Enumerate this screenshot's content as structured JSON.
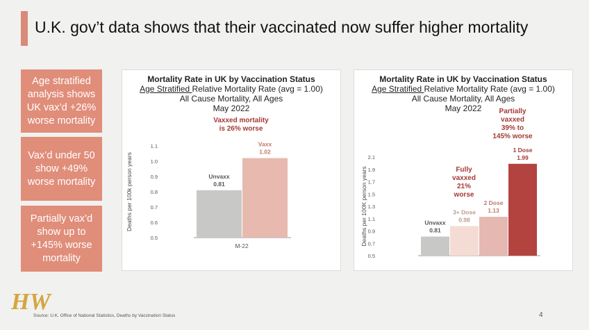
{
  "slide": {
    "title": "U.K. gov’t data shows that their vaccinated now suffer higher mortality",
    "left_boxes": [
      "Age stratified analysis shows UK vax’d +26% worse mortality",
      "Vax’d under 50 show +49% worse mortality",
      "Partially vax’d show up to +145% worse mortality"
    ],
    "footer": "Source: U.K. Office of National Statistics, Deaths by Vaccination Status",
    "page_number": "4",
    "logo_text": "HW",
    "colors": {
      "accent": "#e08d7a",
      "title_bar": "#d98a78",
      "dark_red": "#a33a36"
    }
  },
  "chart_data": [
    {
      "type": "bar",
      "title": "Mortality Rate in UK by Vaccination Status",
      "subtitle_underlined": "Age Stratified ",
      "subtitle_rest": "Relative Mortality Rate (avg = 1.00) All Cause Mortality, All Ages",
      "date": "May 2022",
      "annotation": "Vaxxed mortality is 26% worse",
      "ylabel": "Deaths per 100k person years",
      "xlabel": "M-22",
      "ylim": [
        0.5,
        1.1
      ],
      "yticks": [
        "0.5",
        "0.6",
        "0.7",
        "0.8",
        "0.9",
        "1.0",
        "1.1"
      ],
      "grid": false,
      "categories": [
        "Unvaxx",
        "Vaxx"
      ],
      "values": [
        0.81,
        1.02
      ],
      "value_labels": [
        "0.81",
        "1.02"
      ],
      "colors": [
        "#c8c8c6",
        "#e8b9ae"
      ],
      "label_colors": [
        "#555555",
        "#c07868"
      ]
    },
    {
      "type": "bar",
      "title": "Mortality Rate in UK by Vaccination Status",
      "subtitle_underlined": "Age Stratified ",
      "subtitle_rest": "Relative Mortality Rate (avg = 1.00) All Cause Mortality, All Ages",
      "date": "May 2022",
      "annotations": [
        "Partially vaxxed 39% to 145% worse",
        "Fully vaxxed 21% worse"
      ],
      "ylabel": "Deaths per 100K person years",
      "ylim": [
        0.5,
        2.1
      ],
      "yticks": [
        "0.5",
        "0.7",
        "0.9",
        "1.1",
        "1.3",
        "1.5",
        "1.7",
        "1.9",
        "2.1"
      ],
      "grid": false,
      "categories": [
        "Unvaxx",
        "3+ Dose",
        "2 Dose",
        "1 Dose"
      ],
      "values": [
        0.81,
        0.98,
        1.13,
        1.99
      ],
      "value_labels": [
        "0.81",
        "0.98",
        "1.13",
        "1.99"
      ],
      "colors": [
        "#c8c8c6",
        "#f4dcd4",
        "#e5b8b2",
        "#b3433f"
      ],
      "label_colors": [
        "#555555",
        "#c09a8c",
        "#c07872",
        "#a33a36"
      ]
    }
  ]
}
